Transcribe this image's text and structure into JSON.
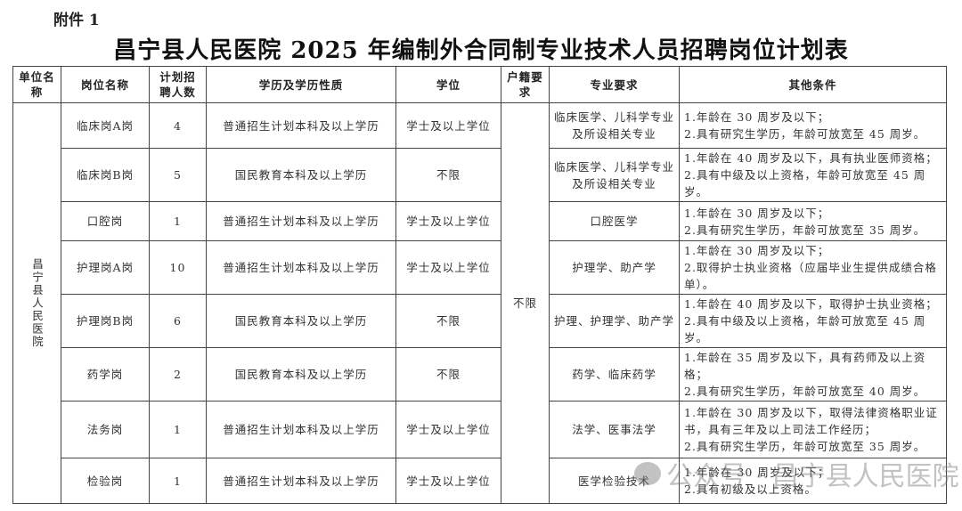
{
  "annex": "附件 1",
  "title": "昌宁县人民医院 2025 年编制外合同制专业技术人员招聘岗位计划表",
  "headers": [
    "单位名称",
    "岗位名称",
    "计划招聘人数",
    "学历及学历性质",
    "学位",
    "户籍要求",
    "专业要求",
    "其他条件"
  ],
  "unit": "昌宁县人民医院",
  "household": "不限",
  "rows": [
    {
      "post": "临床岗A岗",
      "count": "4",
      "edu": "普通招生计划本科及以上学历",
      "degree": "学士及以上学位",
      "major": "临床医学、儿科学专业及所设相关专业",
      "other": [
        "1.年龄在 30 周岁及以下；",
        "2.具有研究生学历，年龄可放宽至 45 周岁。"
      ]
    },
    {
      "post": "临床岗B岗",
      "count": "5",
      "edu": "国民教育本科及以上学历",
      "degree": "不限",
      "major": "临床医学、儿科学专业及所设相关专业",
      "other": [
        "1.年龄在 40 周岁及以下，具有执业医师资格；",
        "2.具有中级及以上资格，年龄可放宽至 45 周岁。"
      ]
    },
    {
      "post": "口腔岗",
      "count": "1",
      "edu": "普通招生计划本科及以上学历",
      "degree": "学士及以上学位",
      "major": "口腔医学",
      "other": [
        "1.年龄在 30 周岁及以下；",
        "2.具有研究生学历，年龄可放宽至 35 周岁。"
      ]
    },
    {
      "post": "护理岗A岗",
      "count": "10",
      "edu": "普通招生计划本科及以上学历",
      "degree": "学士及以上学位",
      "major": "护理学、助产学",
      "other": [
        "1.年龄在 30 周岁及以下；",
        "2.取得护士执业资格（应届毕业生提供成绩合格单）。"
      ]
    },
    {
      "post": "护理岗B岗",
      "count": "6",
      "edu": "国民教育本科及以上学历",
      "degree": "不限",
      "major": "护理、护理学、助产学",
      "other": [
        "1.年龄在 40 周岁及以下，取得护士执业资格；",
        "2.具有中级及以上资格，年龄可放宽至 45 周岁。"
      ]
    },
    {
      "post": "药学岗",
      "count": "2",
      "edu": "国民教育本科及以上学历",
      "degree": "不限",
      "major": "药学、临床药学",
      "other": [
        "1.年龄在 35 周岁及以下，具有药师及以上资格；",
        "2.具有研究生学历，年龄可放宽至 40 周岁。"
      ]
    },
    {
      "post": "法务岗",
      "count": "1",
      "edu": "普通招生计划本科及以上学历",
      "degree": "学士及以上学位",
      "major": "法学、医事法学",
      "other": [
        "1.年龄在 30 周岁及以下，取得法律资格职业证书，具有三年及以上司法工作经历；",
        "2.具有研究生学历，年龄可放宽至 35 周岁。"
      ]
    },
    {
      "post": "检验岗",
      "count": "1",
      "edu": "普通招生计划本科及以上学历",
      "degree": "学士及以上学位",
      "major": "医学检验技术",
      "other": [
        "1.年龄在 30 周岁及以下；",
        "2.具有初级及以上资格。"
      ]
    }
  ],
  "watermark": "公众号 · 昌宁县人民医院"
}
